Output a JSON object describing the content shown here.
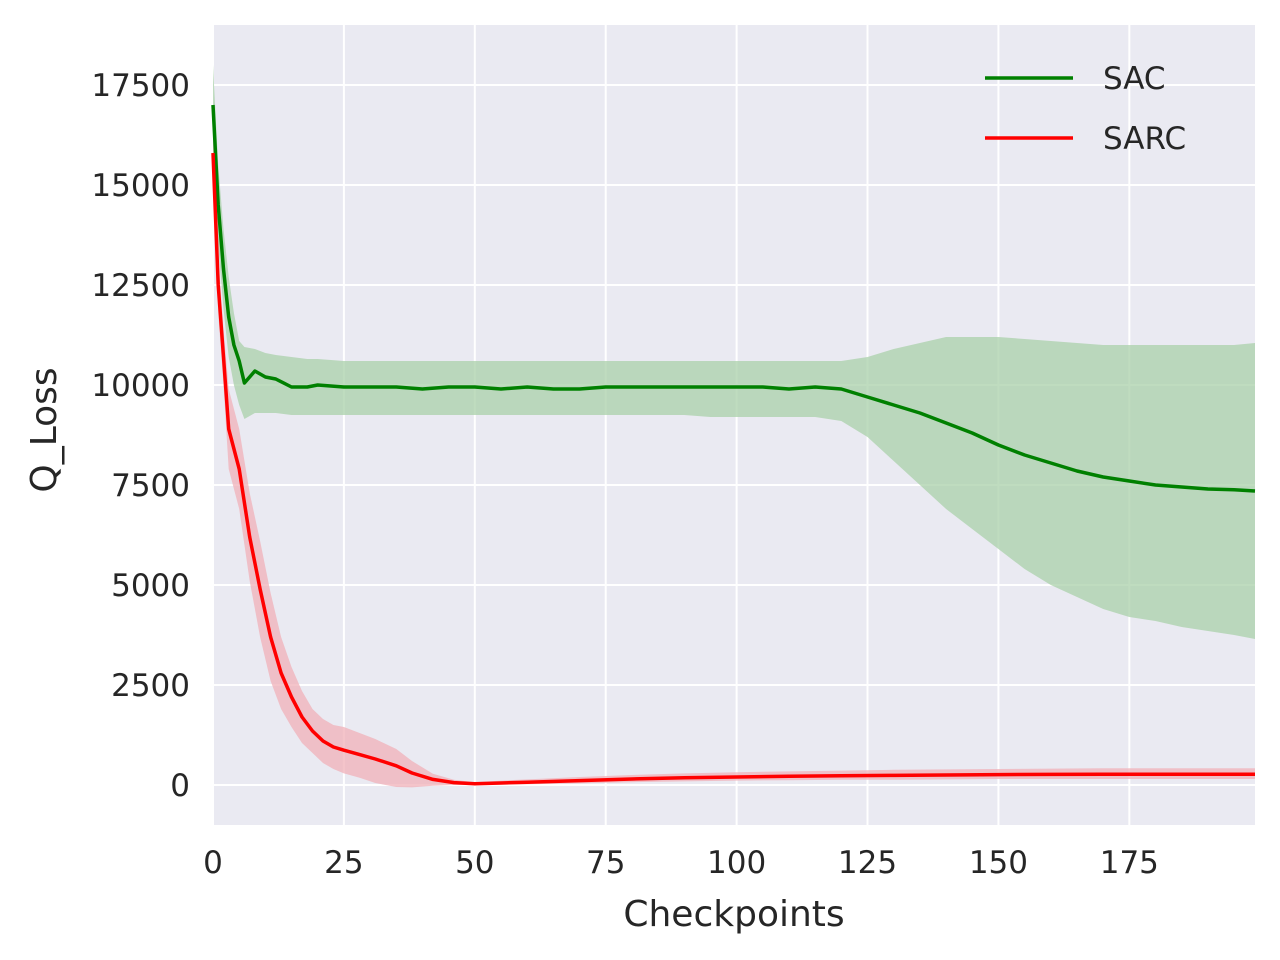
{
  "chart_data": {
    "type": "line",
    "title": "",
    "xlabel": "Checkpoints",
    "ylabel": "Q_Loss",
    "xlim": [
      0,
      199
    ],
    "ylim": [
      -1000,
      19000
    ],
    "xticks": [
      0,
      25,
      50,
      75,
      100,
      125,
      150,
      175
    ],
    "yticks": [
      0,
      2500,
      5000,
      7500,
      10000,
      12500,
      15000,
      17500
    ],
    "grid": true,
    "legend": "top-right",
    "background": "#eaeaf2",
    "series": [
      {
        "name": "SAC",
        "color": "#008000",
        "band_color": "#aad0aa",
        "x": [
          0,
          1,
          2,
          3,
          4,
          5,
          6,
          8,
          10,
          12,
          15,
          18,
          20,
          25,
          30,
          35,
          40,
          45,
          50,
          55,
          60,
          65,
          70,
          75,
          80,
          85,
          90,
          95,
          100,
          105,
          110,
          115,
          120,
          125,
          130,
          135,
          140,
          145,
          150,
          155,
          160,
          165,
          170,
          175,
          180,
          185,
          190,
          195,
          199
        ],
        "mean": [
          17000,
          14500,
          12900,
          11700,
          11000,
          10600,
          10050,
          10350,
          10200,
          10150,
          9950,
          9950,
          10000,
          9950,
          9950,
          9950,
          9900,
          9950,
          9950,
          9900,
          9950,
          9900,
          9900,
          9950,
          9950,
          9950,
          9950,
          9950,
          9950,
          9950,
          9900,
          9950,
          9900,
          9700,
          9500,
          9300,
          9050,
          8800,
          8500,
          8250,
          8050,
          7850,
          7700,
          7600,
          7500,
          7450,
          7400,
          7380,
          7350
        ],
        "upper": [
          18000,
          15500,
          13900,
          12700,
          11800,
          11100,
          10950,
          10900,
          10800,
          10750,
          10700,
          10650,
          10650,
          10600,
          10600,
          10600,
          10600,
          10600,
          10600,
          10600,
          10600,
          10600,
          10600,
          10600,
          10600,
          10600,
          10600,
          10600,
          10600,
          10600,
          10600,
          10600,
          10600,
          10700,
          10900,
          11050,
          11200,
          11200,
          11200,
          11150,
          11100,
          11050,
          11000,
          11000,
          11000,
          11000,
          11000,
          11000,
          11050
        ],
        "lower": [
          16000,
          13500,
          11900,
          10700,
          10000,
          9500,
          9150,
          9300,
          9300,
          9300,
          9250,
          9250,
          9250,
          9250,
          9250,
          9250,
          9250,
          9250,
          9250,
          9250,
          9250,
          9250,
          9250,
          9250,
          9250,
          9250,
          9250,
          9200,
          9200,
          9200,
          9200,
          9200,
          9100,
          8700,
          8100,
          7500,
          6900,
          6400,
          5900,
          5400,
          5000,
          4700,
          4400,
          4200,
          4100,
          3950,
          3850,
          3750,
          3650
        ]
      },
      {
        "name": "SARC",
        "color": "#ff0000",
        "band_color": "#f0b0b8",
        "x": [
          0,
          1,
          2,
          3,
          5,
          7,
          9,
          11,
          13,
          15,
          17,
          19,
          21,
          23,
          25,
          28,
          31,
          35,
          38,
          42,
          46,
          50,
          55,
          60,
          70,
          80,
          90,
          100,
          110,
          120,
          130,
          140,
          150,
          160,
          170,
          180,
          190,
          199
        ],
        "mean": [
          15800,
          12500,
          10700,
          8900,
          7900,
          6200,
          4900,
          3700,
          2800,
          2200,
          1700,
          1350,
          1100,
          950,
          870,
          760,
          650,
          480,
          300,
          140,
          60,
          30,
          50,
          70,
          110,
          150,
          180,
          200,
          220,
          230,
          240,
          250,
          260,
          265,
          270,
          270,
          270,
          270
        ],
        "upper": [
          16200,
          13200,
          11400,
          9900,
          8900,
          7300,
          6100,
          4800,
          3700,
          2950,
          2350,
          1900,
          1650,
          1500,
          1450,
          1300,
          1150,
          900,
          600,
          280,
          130,
          70,
          110,
          140,
          200,
          250,
          290,
          320,
          340,
          360,
          380,
          390,
          400,
          410,
          420,
          420,
          420,
          420
        ],
        "lower": [
          15400,
          11800,
          10000,
          7900,
          6900,
          5100,
          3700,
          2600,
          1900,
          1450,
          1050,
          800,
          550,
          400,
          290,
          180,
          50,
          -50,
          -60,
          -20,
          0,
          0,
          10,
          20,
          40,
          70,
          90,
          110,
          120,
          130,
          130,
          140,
          150,
          150,
          150,
          150,
          150,
          150
        ]
      }
    ]
  }
}
